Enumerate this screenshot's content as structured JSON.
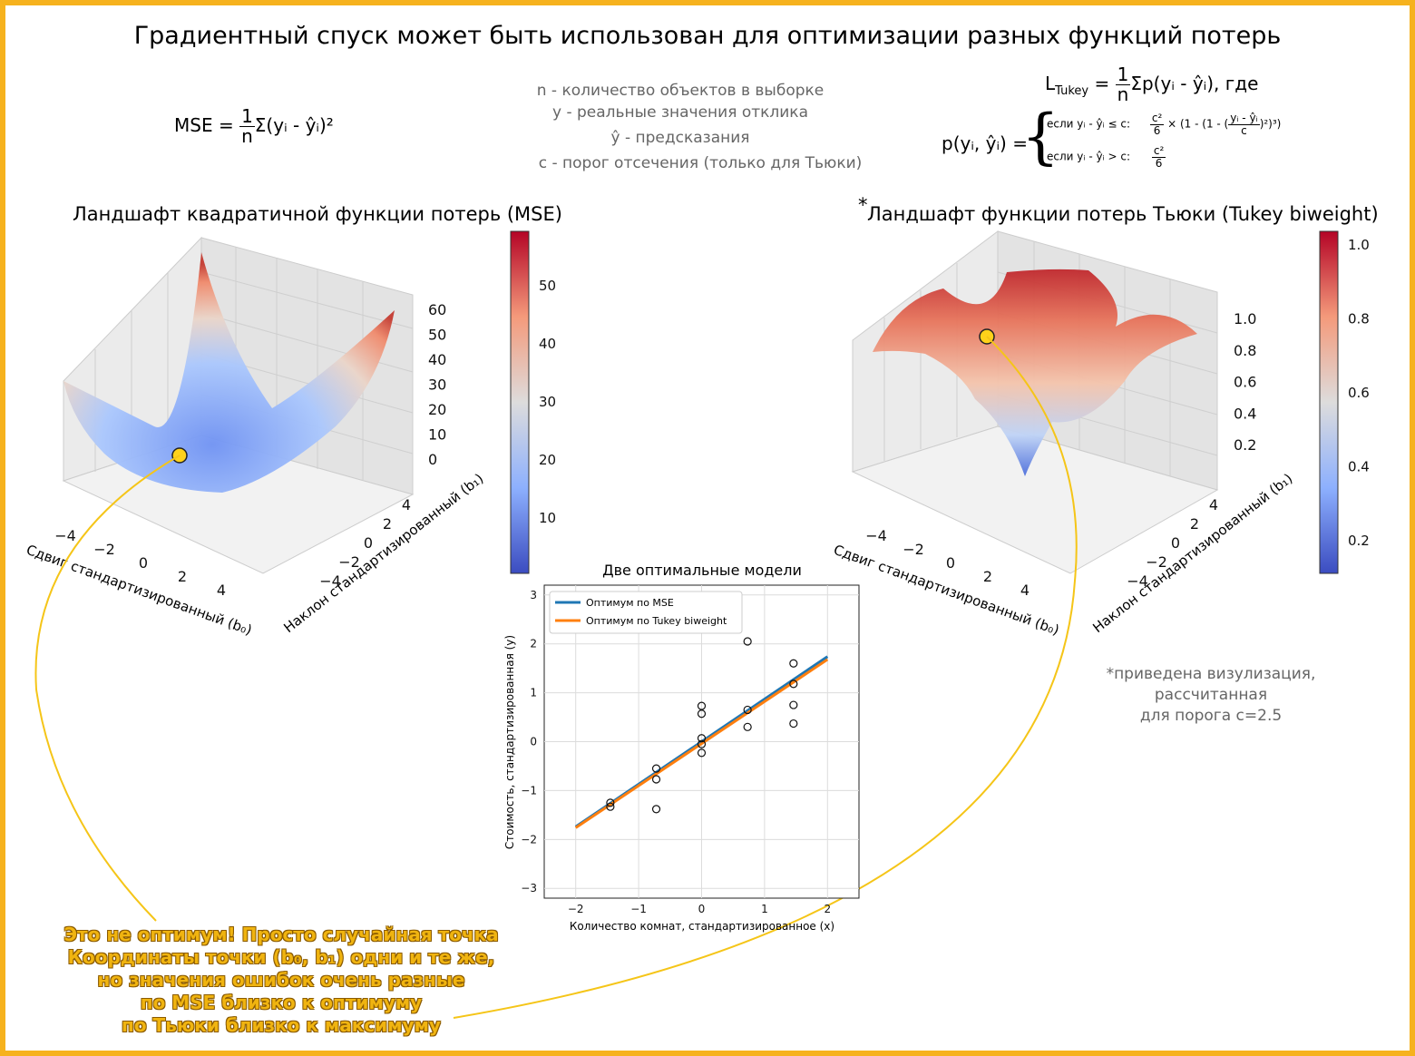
{
  "title": "Градиентный спуск может быть использован для оптимизации разных функций потерь",
  "formulas": {
    "mse_prefix": "MSE =",
    "mse_body": "Σ(yᵢ - ŷᵢ)²",
    "tukey_prefix": "L",
    "tukey_sub": "Tukey",
    "tukey_body": "Σp(yᵢ - ŷᵢ), где",
    "rho_prefix": "p(yᵢ, ŷᵢ) =",
    "case1_cond": "если yᵢ - ŷᵢ ≤ c:",
    "case1_rest": "× (1 - (1 - (",
    "case1_frac_num": "yᵢ - ŷᵢ",
    "case1_tail": ")²)³)",
    "case2_cond": "если yᵢ - ŷᵢ > c:",
    "frac_one": "1",
    "frac_n": "n",
    "frac_c2": "c²",
    "frac_6": "6",
    "frac_c": "c"
  },
  "legend_text": {
    "n": "n - количество объектов в выборке",
    "y": "y - реальные значения отклика",
    "yhat": "ŷ - предсказания",
    "c": "c -  порог отсечения (только для Тьюки)"
  },
  "colors": {
    "frame": "#f6b21e",
    "mse_line": "#1f77b4",
    "tukey_line": "#ff7f0e",
    "point": "#ffd21a",
    "curve": "#f5c518"
  },
  "surface_mse": {
    "title": "Ландшафт квадратичной функции потерь (MSE)",
    "z_ticks": [
      "0",
      "10",
      "20",
      "30",
      "40",
      "50",
      "60"
    ],
    "x_ticks": [
      "−4",
      "−2",
      "0",
      "2",
      "4"
    ],
    "y_ticks": [
      "−4",
      "−2",
      "0",
      "2",
      "4"
    ],
    "xlabel": "Сдвиг стандартизированный (b₀)",
    "ylabel": "Наклон стандартизированный (b₁)",
    "colorbar_ticks": [
      "10",
      "20",
      "30",
      "40",
      "50"
    ]
  },
  "surface_tukey": {
    "title_star": "*",
    "title": "Ландшафт функции потерь Тьюки (Tukey biweight)",
    "z_ticks": [
      "0.2",
      "0.4",
      "0.6",
      "0.8",
      "1.0"
    ],
    "x_ticks": [
      "−4",
      "−2",
      "0",
      "2",
      "4"
    ],
    "y_ticks": [
      "−4",
      "−2",
      "0",
      "2",
      "4"
    ],
    "xlabel": "Сдвиг стандартизированный (b₀)",
    "ylabel": "Наклон стандартизированный (b₁)",
    "colorbar_ticks": [
      "0.2",
      "0.4",
      "0.6",
      "0.8",
      "1.0"
    ]
  },
  "chart_data": {
    "type": "scatter",
    "title": "Две оптимальные модели",
    "xlabel": "Количество комнат, стандартизированное (x)",
    "ylabel": "Стоимость, стандартизированная (y)",
    "xlim": [
      -2.5,
      2.5
    ],
    "ylim": [
      -3.2,
      3.2
    ],
    "x_ticks": [
      -2,
      -1,
      0,
      1,
      2
    ],
    "y_ticks": [
      -3,
      -2,
      -1,
      0,
      1,
      2,
      3
    ],
    "grid": true,
    "legend_position": "top-left",
    "points": [
      {
        "x": -1.45,
        "y": -1.25
      },
      {
        "x": -1.45,
        "y": -1.33
      },
      {
        "x": -0.72,
        "y": -0.55
      },
      {
        "x": -0.72,
        "y": -0.77
      },
      {
        "x": -0.72,
        "y": -1.38
      },
      {
        "x": 0.0,
        "y": 0.73
      },
      {
        "x": 0.0,
        "y": 0.57
      },
      {
        "x": 0.0,
        "y": 0.07
      },
      {
        "x": 0.0,
        "y": -0.05
      },
      {
        "x": 0.0,
        "y": -0.23
      },
      {
        "x": 0.73,
        "y": 2.05
      },
      {
        "x": 0.73,
        "y": 0.65
      },
      {
        "x": 0.73,
        "y": 0.3
      },
      {
        "x": 1.46,
        "y": 1.6
      },
      {
        "x": 1.46,
        "y": 1.18
      },
      {
        "x": 1.46,
        "y": 0.75
      },
      {
        "x": 1.46,
        "y": 0.37
      }
    ],
    "series": [
      {
        "name": "Оптимум по MSE",
        "x": [
          -2,
          2
        ],
        "y": [
          -1.74,
          1.74
        ]
      },
      {
        "name": "Оптимум по Tukey biweight",
        "x": [
          -2,
          2
        ],
        "y": [
          -1.76,
          1.68
        ]
      }
    ]
  },
  "annotation": {
    "lines": [
      "Это не оптимум! Просто случайная точка",
      "Координаты точки (b₀, b₁) одни и те же,",
      "но значения ошибок очень разные",
      "по MSE близко к оптимуму",
      "по Тьюки близко к максимуму"
    ]
  },
  "note": {
    "lines": [
      "*приведена визулизация,",
      "рассчитанная",
      "для порога c=2.5"
    ]
  }
}
